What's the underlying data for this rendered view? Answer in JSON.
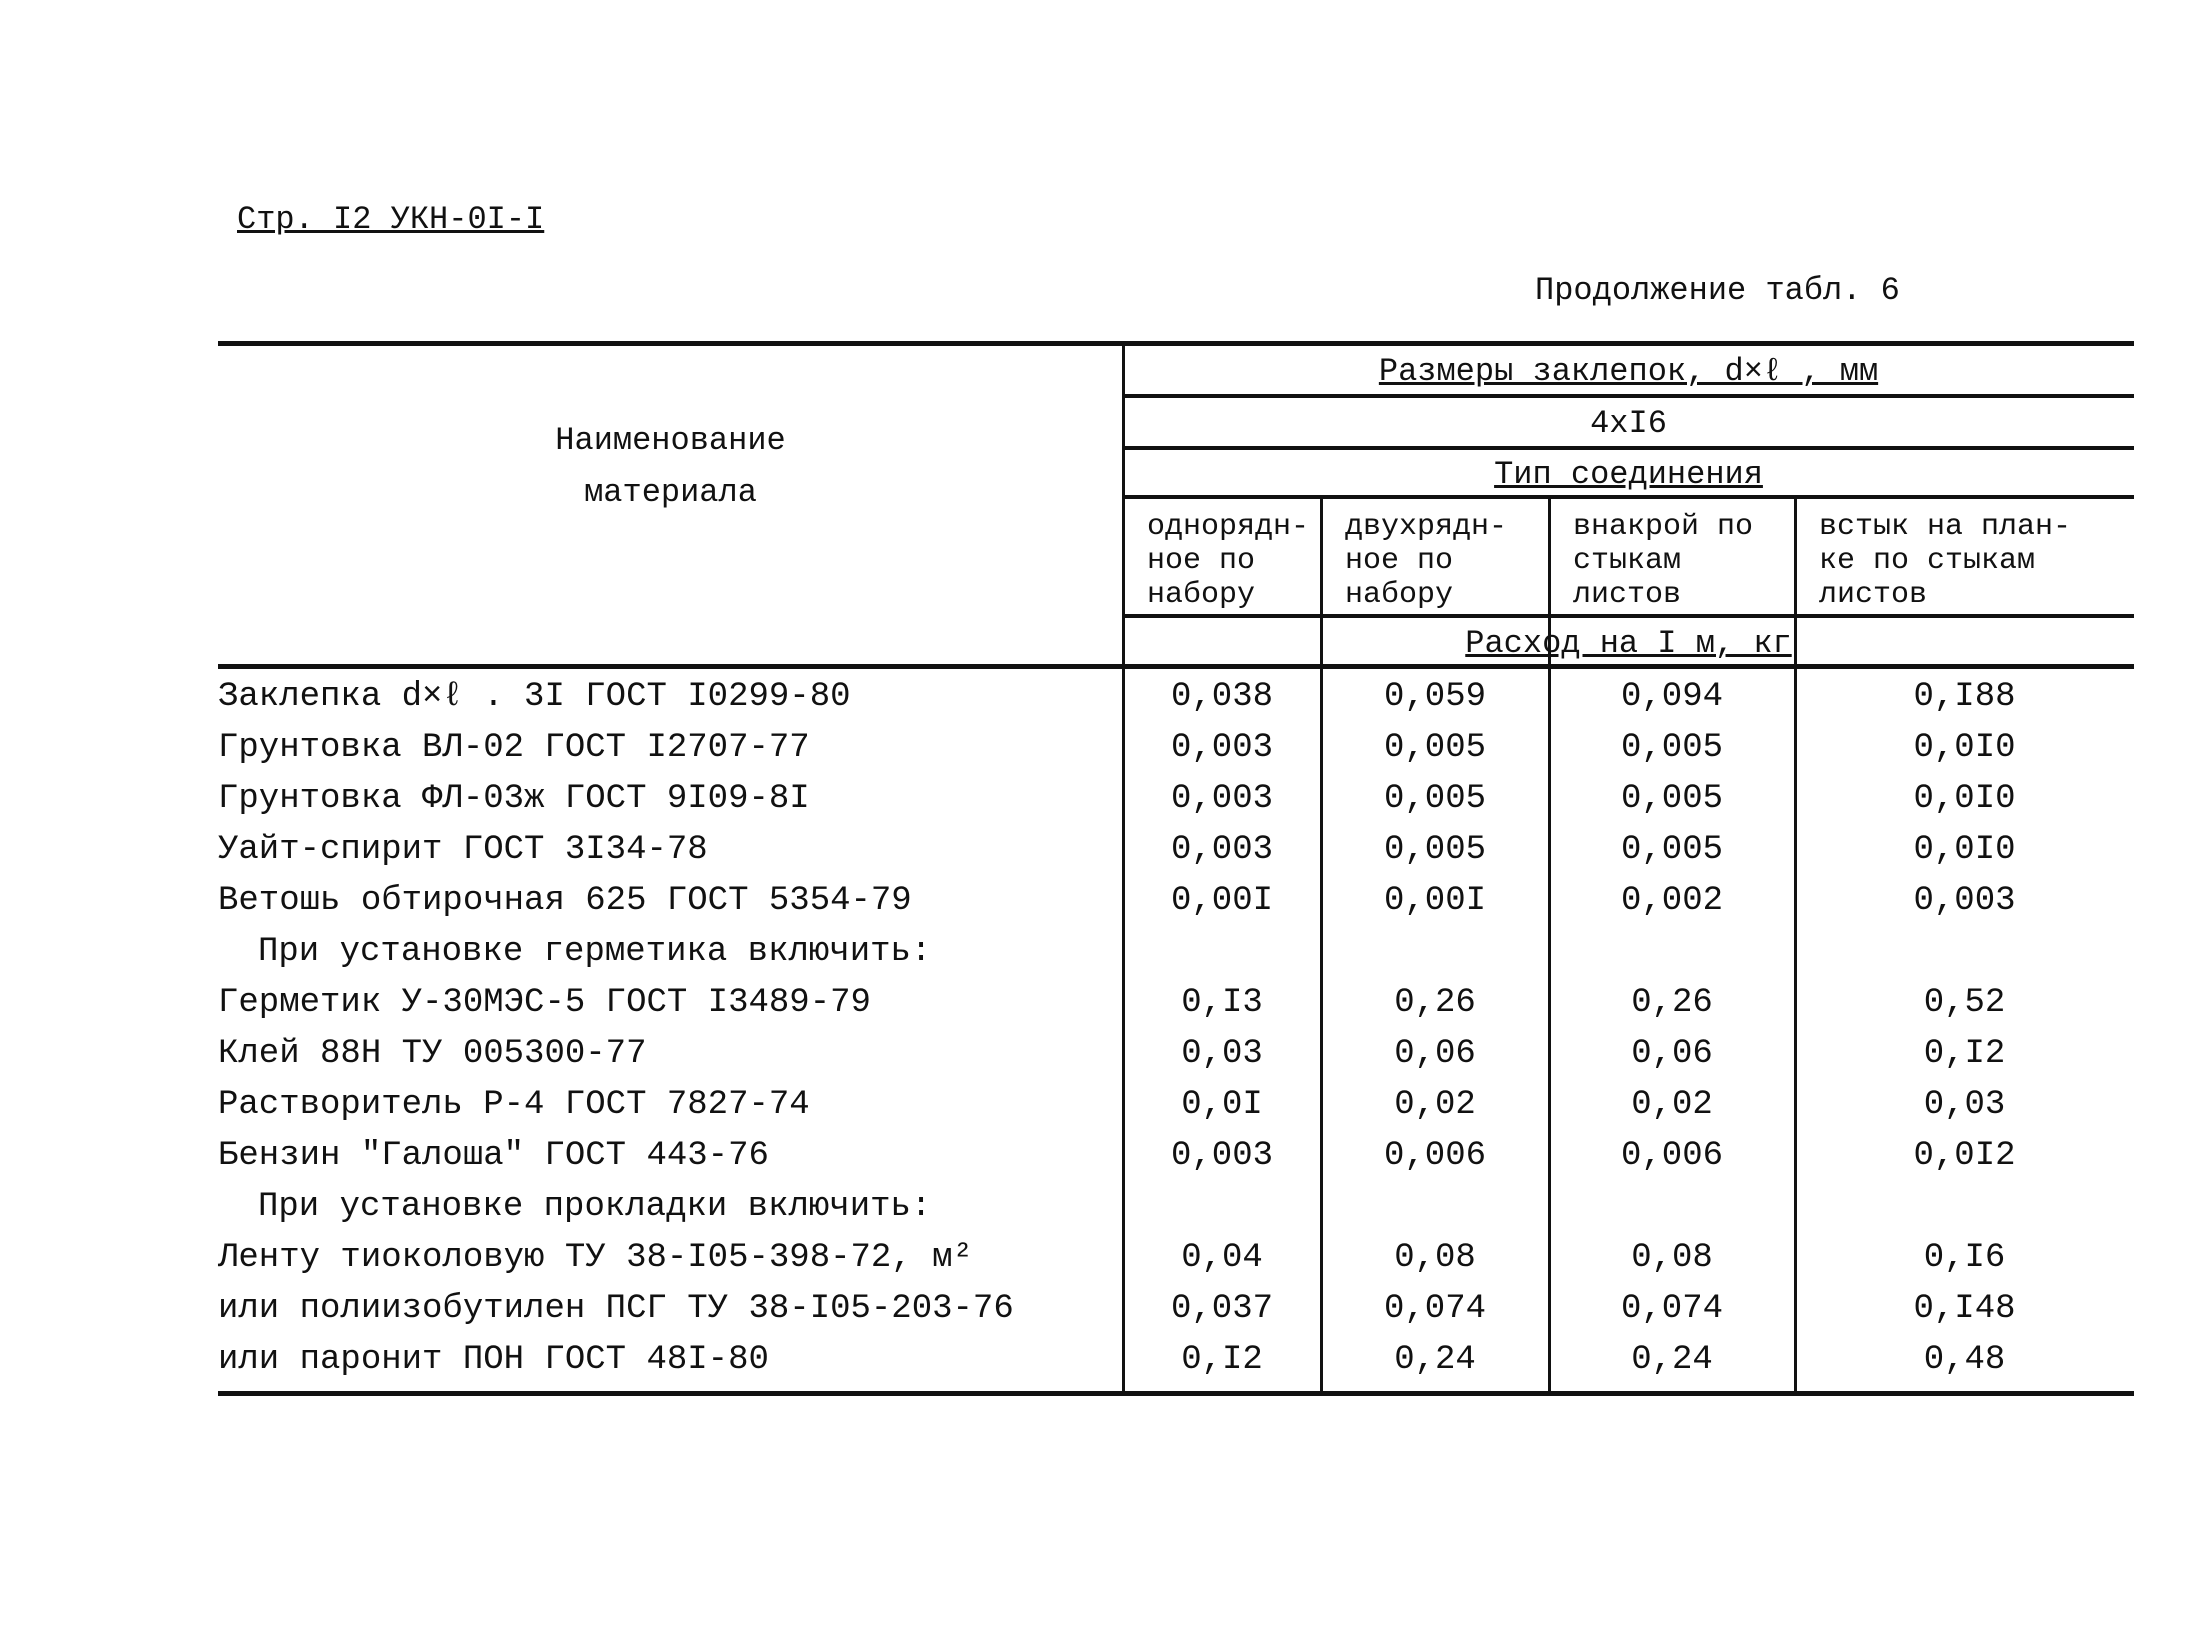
{
  "header": {
    "page_ref": "Стр. I2 УКН-0I-I",
    "caption": "Продолжение табл. 6"
  },
  "table": {
    "name_header": [
      "Наименование",
      "материала"
    ],
    "size_header": "Размеры заклепок, d×ℓ , мм",
    "size": "4xI6",
    "joint_header": "Тип соединения",
    "columns": [
      [
        "однорядн-",
        "ное по",
        "набору"
      ],
      [
        "двухрядн-",
        "ное по",
        "набору"
      ],
      [
        "внакрой по",
        "стыкам",
        "листов"
      ],
      [
        "встык на план-",
        "ке по стыкам",
        "листов"
      ]
    ],
    "unit_header": "Расход на I м, кг",
    "rows": [
      {
        "name": "Заклепка d×ℓ . 3I ГОСТ I0299-80",
        "values": [
          "0,038",
          "0,059",
          "0,094",
          "0,I88"
        ]
      },
      {
        "name": "Грунтовка ВЛ-02 ГОСТ I2707-77",
        "values": [
          "0,003",
          "0,005",
          "0,005",
          "0,0I0"
        ]
      },
      {
        "name": "Грунтовка ФЛ-03ж ГОСТ 9I09-8I",
        "values": [
          "0,003",
          "0,005",
          "0,005",
          "0,0I0"
        ]
      },
      {
        "name": "Уайт-спирит ГОСТ 3I34-78",
        "values": [
          "0,003",
          "0,005",
          "0,005",
          "0,0I0"
        ]
      },
      {
        "name": "Ветошь обтирочная 625 ГОСТ 5354-79",
        "values": [
          "0,00I",
          "0,00I",
          "0,002",
          "0,003"
        ]
      },
      {
        "section": "При установке герметика включить:"
      },
      {
        "name": "Герметик У-30МЭС-5 ГОСТ I3489-79",
        "values": [
          "0,I3",
          "0,26",
          "0,26",
          "0,52"
        ]
      },
      {
        "name": "Клей 88Н ТУ 005300-77",
        "values": [
          "0,03",
          "0,06",
          "0,06",
          "0,I2"
        ]
      },
      {
        "name": "Растворитель Р-4 ГОСТ 7827-74",
        "values": [
          "0,0I",
          "0,02",
          "0,02",
          "0,03"
        ]
      },
      {
        "name": "Бензин \"Галоша\" ГОСТ 443-76",
        "values": [
          "0,003",
          "0,006",
          "0,006",
          "0,0I2"
        ]
      },
      {
        "section": "При установке прокладки включить:"
      },
      {
        "name": "Ленту тиоколовую ТУ 38-I05-398-72, м²",
        "values": [
          "0,04",
          "0,08",
          "0,08",
          "0,I6"
        ]
      },
      {
        "name": "или полиизобутилен ПСГ ТУ 38-I05-203-76",
        "values": [
          "0,037",
          "0,074",
          "0,074",
          "0,I48"
        ]
      },
      {
        "name": "или паронит ПОН ГОСТ 48I-80",
        "values": [
          "0,I2",
          "0,24",
          "0,24",
          "0,48"
        ]
      }
    ]
  }
}
